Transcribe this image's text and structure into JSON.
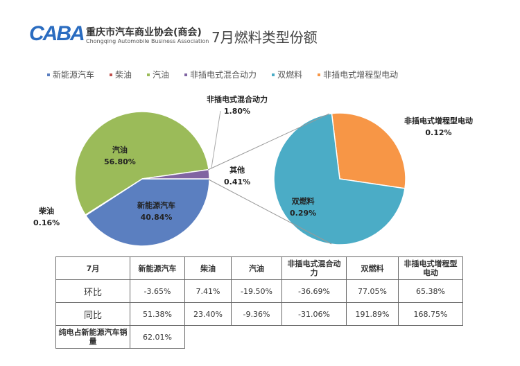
{
  "header": {
    "logo": "CABA",
    "org_cn": "重庆市汽车商业协会(商会)",
    "org_en": "Chongqing Automobile Business Association",
    "title": "7月燃料类型份额"
  },
  "chart_data": {
    "type": "pie",
    "title": "7月燃料类型份额",
    "legend": [
      "新能源汽车",
      "柴油",
      "汽油",
      "非插电式混合动力",
      "双燃料",
      "非插电式增程型电动"
    ],
    "colors": {
      "新能源汽车": "#5b7fc0",
      "柴油": "#c0504d",
      "汽油": "#9bbb59",
      "其他": "#8064a2",
      "双燃料": "#4bacc6",
      "非插电式增程型电动": "#f79646"
    },
    "main_pie": [
      {
        "name": "新能源汽车",
        "value": 40.84,
        "label": "40.84%"
      },
      {
        "name": "柴油",
        "value": 0.16,
        "label": "0.16%"
      },
      {
        "name": "汽油",
        "value": 56.8,
        "label": "56.80%"
      },
      {
        "name": "非插电式混合动力",
        "value": 1.8,
        "label": "1.80%"
      },
      {
        "name": "其他",
        "value": 0.41,
        "label": "0.41%"
      }
    ],
    "secondary_pie": [
      {
        "name": "双燃料",
        "value": 0.29,
        "label": "0.29%"
      },
      {
        "name": "非插电式增程型电动",
        "value": 0.12,
        "label": "0.12%"
      }
    ]
  },
  "table": {
    "header": [
      "7月",
      "新能源汽车",
      "柴油",
      "汽油",
      "非插电式混合动力",
      "双燃料",
      "非插电式增程型电动"
    ],
    "rows": [
      [
        "环比",
        "-3.65%",
        "7.41%",
        "-19.50%",
        "-36.69%",
        "77.05%",
        "65.38%"
      ],
      [
        "同比",
        "51.38%",
        "23.40%",
        "-9.36%",
        "-31.06%",
        "191.89%",
        "168.75%"
      ]
    ],
    "footer": [
      "纯电占新能源汽车销量",
      "62.01%"
    ]
  }
}
